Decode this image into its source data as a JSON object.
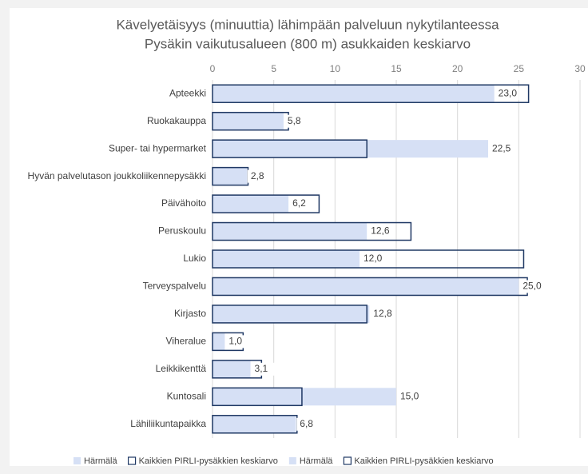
{
  "chart_data": {
    "type": "bar",
    "orientation": "horizontal",
    "title": "Kävelyetäisyys (minuuttia) lähimpään palveluun nykytilanteessa",
    "subtitle": "Pysäkin vaikutusalueen (800 m) asukkaiden keskiarvo",
    "categories": [
      "Apteekki",
      "Ruokakauppa",
      "Super- tai hypermarket",
      "Hyvän palvelutason joukkoliikennepysäkki",
      "Päivähoito",
      "Peruskoulu",
      "Lukio",
      "Terveyspalvelu",
      "Kirjasto",
      "Viheralue",
      "Leikkikenttä",
      "Kuntosali",
      "Lähiliikuntapaikka"
    ],
    "series": [
      {
        "name": "Härmälä",
        "color": "#d6e0f5",
        "style": "filled",
        "values": [
          23.0,
          5.8,
          22.5,
          2.8,
          6.2,
          12.6,
          12.0,
          25.0,
          12.8,
          1.0,
          3.1,
          15.0,
          6.8
        ],
        "value_labels": [
          "23,0",
          "5,8",
          "22,5",
          "2,8",
          "6,2",
          "12,6",
          "12,0",
          "25,0",
          "12,8",
          "1,0",
          "3,1",
          "15,0",
          "6,8"
        ]
      },
      {
        "name": "Kaikkien PIRLI-pysäkkien keskiarvo",
        "color": "#1f3864",
        "style": "outline",
        "values": [
          25.8,
          6.2,
          12.6,
          2.9,
          8.7,
          16.2,
          25.4,
          25.7,
          12.6,
          2.5,
          4.0,
          7.3,
          6.9
        ]
      }
    ],
    "xlim": [
      0,
      30
    ],
    "xticks": [
      0,
      5,
      10,
      15,
      20,
      25,
      30
    ],
    "grid": true,
    "legend": "bottom"
  }
}
